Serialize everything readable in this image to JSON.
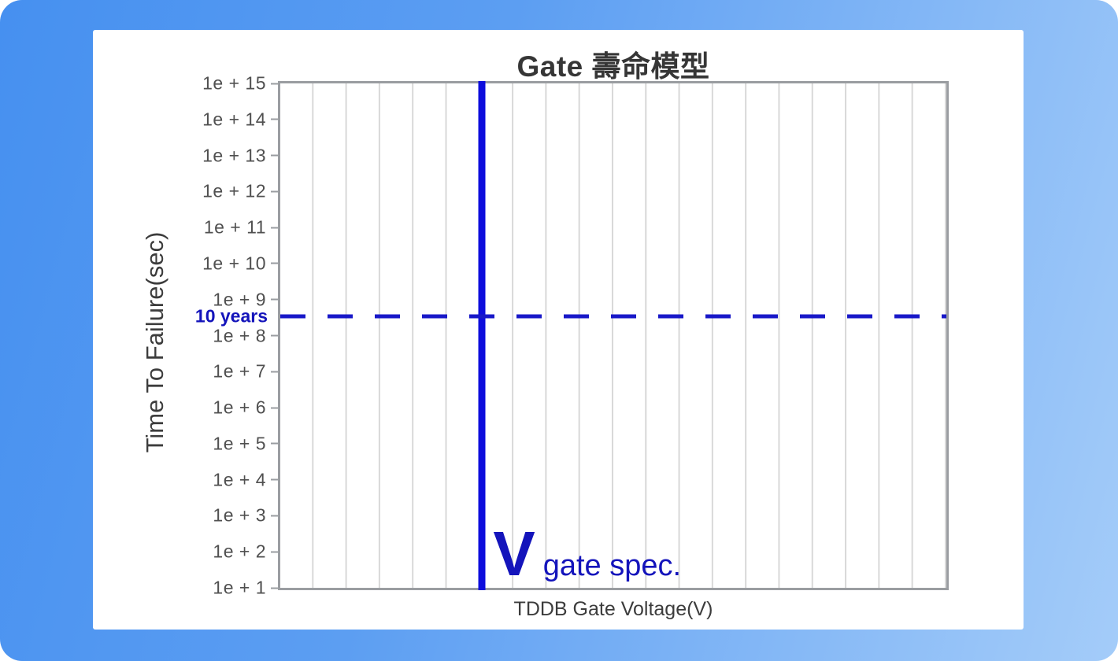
{
  "chart_data": {
    "type": "line",
    "title": "Gate 壽命模型",
    "xlabel": "TDDB Gate Voltage(V)",
    "ylabel": "Time To Failure(sec)",
    "series": [],
    "y_scale": "log",
    "y_ticks": [
      "1e + 15",
      "1e + 14",
      "1e + 13",
      "1e + 12",
      "1e + 11",
      "1e + 10",
      "1e + 9",
      "1e + 8",
      "1e + 7",
      "1e + 6",
      "1e + 5",
      "1e + 4",
      "1e + 3",
      "1e + 2",
      "1e + 1"
    ],
    "ylim_exponents": [
      1,
      15
    ],
    "x_grid_divisions": 20,
    "grid": "vertical-only",
    "annotations": {
      "vline": {
        "label_symbol": "V",
        "label_text": "gate spec.",
        "x_fraction": 0.303,
        "style": "solid",
        "color": "#0d0ddc"
      },
      "hline": {
        "label": "10 years",
        "y_fraction_from_top": 0.462,
        "between_ticks": [
          "1e + 9",
          "1e + 8"
        ],
        "style": "dashed",
        "color": "#1818c8"
      }
    },
    "colors": {
      "bg_gradient_start": "#4690f0",
      "bg_gradient_mid": "#5c9ef2",
      "bg_gradient_end": "#a4ccf9",
      "card": "#ffffff",
      "plot_border": "#9a9da1",
      "gridline": "#d8d8d8",
      "tick_text": "#505050",
      "title_text": "#363636",
      "axis_label_text": "#3c3c3c",
      "spec_line": "#0d0ddc",
      "dashed_line": "#1818c8",
      "annotation_text": "#1414bb"
    }
  }
}
